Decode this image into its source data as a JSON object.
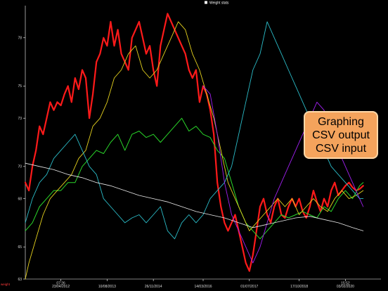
{
  "chart_data": {
    "type": "line",
    "title": "Weight stats",
    "ylabel": "weight",
    "xlim": [
      0,
      100
    ],
    "ylim": [
      63,
      80
    ],
    "y_ticks": [
      63,
      65,
      68,
      70,
      73,
      75,
      78
    ],
    "x_ticks": [
      {
        "x": 10,
        "label": "23/04/2012",
        "label_top": "07:26"
      },
      {
        "x": 23,
        "label": "10/08/2013"
      },
      {
        "x": 36,
        "label": "26/11/2014"
      },
      {
        "x": 50,
        "label": "14/03/2016"
      },
      {
        "x": 63,
        "label": "01/07/2017"
      },
      {
        "x": 77,
        "label": "17/10/2018"
      },
      {
        "x": 90,
        "label": "03/02/2020",
        "label_top": "15:52"
      }
    ],
    "grid": false,
    "series": [
      {
        "name": "Weight stats",
        "color": "#ff1a1a",
        "width": 2.2,
        "x": [
          0,
          1,
          2,
          3,
          4,
          5,
          6,
          7,
          8,
          9,
          10,
          11,
          12,
          13,
          14,
          15,
          16,
          17,
          18,
          19,
          20,
          21,
          22,
          23,
          24,
          25,
          26,
          27,
          28,
          29,
          30,
          31,
          32,
          33,
          34,
          35,
          36,
          37,
          38,
          39,
          40,
          41,
          42,
          43,
          44,
          45,
          46,
          47,
          48,
          49,
          50,
          51,
          52,
          53,
          54,
          55,
          56,
          57,
          58,
          59,
          60,
          61,
          62,
          63,
          64,
          65,
          66,
          67,
          68,
          69,
          70,
          71,
          72,
          73,
          74,
          75,
          76,
          77,
          78,
          79,
          80,
          81,
          82,
          83,
          84,
          85,
          86,
          87,
          88,
          89,
          90,
          91,
          92,
          93,
          94,
          95
        ],
        "y": [
          69,
          68.5,
          70,
          71,
          72.5,
          72,
          73,
          74,
          73.5,
          74,
          73.8,
          74.5,
          75,
          74,
          75.5,
          74.8,
          76,
          75.5,
          73,
          74.5,
          76.5,
          77,
          78,
          77.5,
          79,
          77.5,
          78.5,
          77,
          76.5,
          76,
          78,
          78.5,
          79,
          78,
          77,
          77.5,
          76,
          75,
          77.5,
          78.5,
          79.5,
          79,
          78.5,
          78,
          77.5,
          77,
          76,
          75.5,
          76,
          74,
          75,
          74.5,
          73.5,
          72,
          69,
          67.5,
          66.5,
          66,
          66.5,
          67,
          66,
          65,
          64,
          63.5,
          64.5,
          66,
          67.5,
          68,
          67,
          66.5,
          67.5,
          68,
          67,
          66.8,
          67.5,
          68,
          67.5,
          68,
          67.2,
          66.8,
          67.5,
          68.5,
          67.8,
          67.2,
          68,
          67.5,
          68.5,
          69,
          68.2,
          68.5,
          68.8,
          69,
          68.7,
          68.5,
          68.6,
          68.8
        ]
      },
      {
        "color": "#2ad62a",
        "width": 1.0,
        "x": [
          0,
          2,
          4,
          6,
          8,
          10,
          12,
          14,
          16,
          18,
          20,
          22,
          24,
          26,
          28,
          30,
          32,
          34,
          36,
          38,
          40,
          42,
          44,
          46,
          48,
          50,
          52,
          54,
          56,
          58,
          60,
          62,
          64,
          66,
          68,
          70,
          72,
          74,
          76,
          78,
          80,
          82,
          84,
          86,
          88,
          90,
          92,
          94,
          95
        ],
        "y": [
          66,
          66.5,
          67.5,
          68,
          68.5,
          68.5,
          69,
          69,
          70,
          70.5,
          71,
          70.8,
          71.5,
          72,
          71,
          72,
          72.2,
          71.8,
          72,
          71.5,
          72,
          72.5,
          73,
          72.2,
          72.5,
          72,
          71.8,
          71,
          70.5,
          69,
          67.5,
          66.5,
          66,
          65.5,
          66,
          66.5,
          67,
          66.8,
          67,
          67.2,
          67,
          66.8,
          67.5,
          67.2,
          68,
          68.5,
          68,
          68.8,
          69
        ]
      },
      {
        "color": "#e6d21e",
        "width": 0.9,
        "x": [
          0,
          1,
          3,
          5,
          7,
          9,
          11,
          13,
          15,
          17,
          19,
          21,
          23,
          25,
          27,
          29,
          31,
          33,
          35,
          37,
          39,
          41,
          43,
          45,
          47,
          49,
          51,
          53,
          55,
          57,
          59,
          61,
          63,
          65,
          67,
          69,
          71,
          73,
          75,
          77,
          79,
          81,
          83,
          85,
          87,
          89,
          91,
          93,
          95
        ],
        "y": [
          63,
          64,
          65.5,
          67,
          68,
          68.5,
          69,
          69.5,
          70.5,
          71,
          72.5,
          73,
          74,
          75.5,
          76,
          77,
          77.5,
          76,
          75.5,
          76,
          77,
          78,
          79,
          78.5,
          77,
          76,
          74.5,
          73,
          71,
          69,
          68,
          67,
          66,
          66.5,
          67,
          67.5,
          68,
          67.5,
          68,
          67,
          67.5,
          68,
          67.5,
          67.2,
          68,
          68.5,
          68,
          68.2,
          68.5
        ]
      },
      {
        "color": "#2bbcc8",
        "width": 0.9,
        "x": [
          0,
          2,
          4,
          6,
          8,
          10,
          12,
          14,
          16,
          18,
          20,
          22,
          24,
          26,
          28,
          30,
          32,
          34,
          36,
          38,
          40,
          42,
          44,
          46,
          48,
          50,
          52,
          54,
          56,
          58,
          60,
          62,
          64,
          66,
          68,
          70,
          72,
          74,
          76,
          78,
          80,
          82,
          84,
          86,
          88,
          90,
          92,
          94,
          95
        ],
        "y": [
          66.5,
          68,
          69,
          69.5,
          70.5,
          71,
          71.5,
          72,
          71,
          70,
          69.5,
          68,
          67.5,
          67,
          66.5,
          66.8,
          67,
          66.5,
          67,
          67.5,
          66,
          65.5,
          66.5,
          67,
          66.5,
          67,
          68,
          68.5,
          69,
          70,
          72,
          74,
          76,
          77,
          79,
          78,
          77,
          76,
          75,
          74,
          73,
          72,
          71,
          70,
          69.5,
          69,
          68.5,
          68,
          68
        ]
      },
      {
        "color": "#a020f0",
        "width": 0.9,
        "x": [
          50,
          52,
          54,
          56,
          58,
          60,
          62,
          64,
          66,
          68,
          70,
          72,
          74,
          76,
          78,
          80,
          82,
          84,
          86,
          88,
          90,
          92,
          94,
          95
        ],
        "y": [
          75,
          74.5,
          72,
          69,
          67,
          66,
          65,
          64,
          65,
          66.5,
          68,
          69,
          70,
          71,
          72,
          73,
          74,
          73.5,
          72,
          71,
          70,
          69,
          68,
          67.5
        ]
      },
      {
        "color": "#e8e8e8",
        "width": 0.8,
        "x": [
          0,
          4,
          8,
          12,
          16,
          20,
          24,
          28,
          32,
          36,
          40,
          44,
          48,
          52,
          56,
          60,
          64,
          68,
          72,
          76,
          80,
          84,
          88,
          92,
          95
        ],
        "y": [
          70.2,
          70,
          69.8,
          69.5,
          69.3,
          69,
          68.8,
          68.5,
          68.2,
          68,
          67.8,
          67.5,
          67.2,
          67,
          66.8,
          66.5,
          66.2,
          66.4,
          66.6,
          66.8,
          66.9,
          66.7,
          66.5,
          66.2,
          66
        ]
      }
    ]
  },
  "menu": {
    "graphing_label": "Graphing",
    "csv_output_label": "CSV output",
    "csv_input_label": "CSV input"
  }
}
